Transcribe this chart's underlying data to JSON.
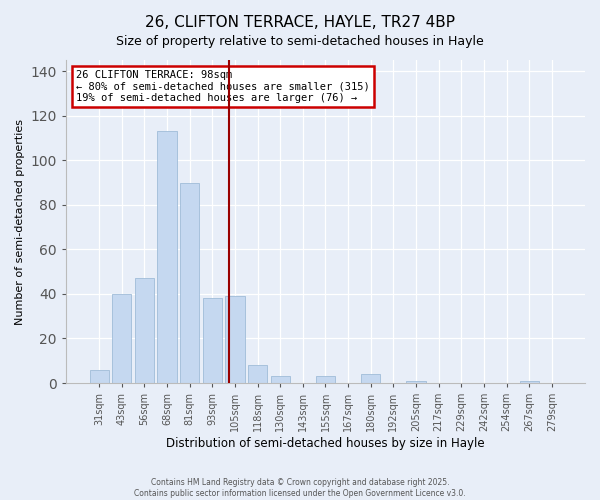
{
  "title": "26, CLIFTON TERRACE, HAYLE, TR27 4BP",
  "subtitle": "Size of property relative to semi-detached houses in Hayle",
  "xlabel": "Distribution of semi-detached houses by size in Hayle",
  "ylabel": "Number of semi-detached properties",
  "bar_labels": [
    "31sqm",
    "43sqm",
    "56sqm",
    "68sqm",
    "81sqm",
    "93sqm",
    "105sqm",
    "118sqm",
    "130sqm",
    "143sqm",
    "155sqm",
    "167sqm",
    "180sqm",
    "192sqm",
    "205sqm",
    "217sqm",
    "229sqm",
    "242sqm",
    "254sqm",
    "267sqm",
    "279sqm"
  ],
  "bar_values": [
    6,
    40,
    47,
    113,
    90,
    38,
    39,
    8,
    3,
    0,
    3,
    0,
    4,
    0,
    1,
    0,
    0,
    0,
    0,
    1,
    0
  ],
  "bar_color": "#c5d8f0",
  "bar_edgecolor": "#a0bcd8",
  "bar_width": 0.85,
  "ylim": [
    0,
    145
  ],
  "yticks": [
    0,
    20,
    40,
    60,
    80,
    100,
    120,
    140
  ],
  "vline_x": 5.72,
  "vline_color": "#990000",
  "annotation_title": "26 CLIFTON TERRACE: 98sqm",
  "annotation_line2": "← 80% of semi-detached houses are smaller (315)",
  "annotation_line3": "19% of semi-detached houses are larger (76) →",
  "annotation_box_edgecolor": "#cc0000",
  "background_color": "#e8eef8",
  "footer1": "Contains HM Land Registry data © Crown copyright and database right 2025.",
  "footer2": "Contains public sector information licensed under the Open Government Licence v3.0.",
  "grid_color": "#ffffff",
  "title_fontsize": 11,
  "subtitle_fontsize": 9,
  "xlabel_fontsize": 8.5,
  "ylabel_fontsize": 8
}
